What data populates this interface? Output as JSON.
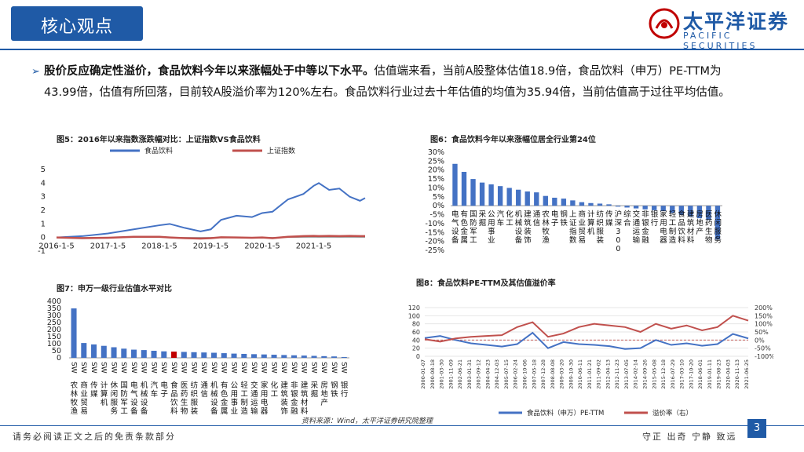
{
  "header": {
    "title": "核心观点",
    "logo_cn": "太平洋证券",
    "logo_en": "PACIFIC SECURITIES"
  },
  "bullet": {
    "bold": "股价反应确定性溢价，食品饮料今年以来涨幅处于中等以下水平。",
    "text": "估值端来看，当前A股整体估值18.9倍，食品饮料（申万）PE-TTM为43.99倍，估值有所回落，目前较A股溢价率为120%左右。食品饮料行业过去十年估值的均值为35.94倍，当前估值高于过往平均估值。"
  },
  "colors": {
    "blue": "#4472c4",
    "red": "#c0504d",
    "highlight": "#c00000"
  },
  "chart_data": [
    {
      "id": "fig5",
      "type": "line",
      "title": "图5：2016年以来指数涨跌幅对比：上证指数VS食品饮料",
      "legend": [
        "食品饮料",
        "上证指数"
      ],
      "xlabel": "",
      "ylabel": "",
      "ylim": [
        -1,
        5
      ],
      "yticks": [
        "5",
        "4",
        "3",
        "2",
        "1",
        "0",
        "-1"
      ],
      "xticks": [
        "2016-1-5",
        "2017-1-5",
        "2018-1-5",
        "2019-1-5",
        "2020-1-5",
        "2021-1-5"
      ],
      "x": [
        2016.0,
        2016.5,
        2017.0,
        2017.5,
        2018.0,
        2018.2,
        2018.5,
        2018.8,
        2019.0,
        2019.2,
        2019.5,
        2019.8,
        2020.0,
        2020.2,
        2020.5,
        2020.8,
        2021.0,
        2021.1,
        2021.3,
        2021.5,
        2021.7,
        2021.9,
        2022.0
      ],
      "series": [
        {
          "name": "食品饮料",
          "values": [
            0.0,
            0.1,
            0.3,
            0.6,
            0.9,
            1.0,
            0.7,
            0.45,
            0.6,
            1.3,
            1.6,
            1.5,
            1.8,
            1.9,
            2.8,
            3.2,
            3.8,
            4.0,
            3.5,
            3.6,
            3.0,
            2.7,
            2.9
          ]
        },
        {
          "name": "上证指数",
          "values": [
            0.0,
            -0.05,
            -0.02,
            0.05,
            0.05,
            0.0,
            -0.05,
            -0.08,
            -0.05,
            0.02,
            0.0,
            -0.02,
            0.0,
            -0.05,
            0.05,
            0.1,
            0.12,
            0.1,
            0.12,
            0.1,
            0.12,
            0.1,
            0.1
          ]
        }
      ]
    },
    {
      "id": "fig6",
      "type": "bar",
      "title": "图6：食品饮料今年以来涨幅位居全行业第24位",
      "ylim": [
        -25,
        30
      ],
      "yticks": [
        "30%",
        "25%",
        "20%",
        "15%",
        "10%",
        "5%",
        "0%",
        "-5%",
        "-10%",
        "-15%",
        "-20%",
        "-25%"
      ],
      "categories": [
        "电气设备",
        "有色金属",
        "国防军工",
        "采掘",
        "公用事业",
        "汽车",
        "化工",
        "机械设备",
        "建筑装饰",
        "通信",
        "农林牧渔",
        "电子",
        "钢铁",
        "上证指数",
        "商业贸易",
        "计算机",
        "纺织服装",
        "传媒",
        "沪深300",
        "综合",
        "交通运输",
        "非银金融",
        "银行",
        "家用电器",
        "轻工制造",
        "食品饮料",
        "建筑材料",
        "房地产",
        "医药生物",
        "休闲服务"
      ],
      "values": [
        23.5,
        19,
        15,
        13,
        12,
        11,
        10,
        9,
        8,
        7.5,
        5.5,
        4.5,
        4.0,
        3.0,
        2.0,
        1.5,
        1.2,
        0.8,
        -0.5,
        -1,
        -1.5,
        -2,
        -2.5,
        -3,
        -4,
        -5,
        -6,
        -7,
        -8,
        -19
      ],
      "value_format": "percent"
    },
    {
      "id": "fig7",
      "type": "bar",
      "title": "图7：申万一级行业估值水平对比",
      "ylim": [
        0,
        400
      ],
      "yticks": [
        "400",
        "350",
        "300",
        "250",
        "200",
        "150",
        "100",
        "50",
        "0"
      ],
      "categories": [
        "农林牧渔",
        "商业贸易",
        "传媒",
        "计算机",
        "休闲服务",
        "国防军工",
        "电气设备",
        "机械设备",
        "汽车",
        "电子",
        "食品饮料",
        "医药生物",
        "纺织服装",
        "通信",
        "机械设备",
        "有色金属",
        "公用事业",
        "轻工制造",
        "交通运输",
        "家用电器",
        "化工",
        "建筑装饰",
        "非银金融",
        "建筑材料",
        "采掘",
        "房地产",
        "钢铁",
        "银行"
      ],
      "tick_label": "SW",
      "highlight_index": 10,
      "values": [
        350,
        105,
        95,
        85,
        75,
        65,
        58,
        55,
        50,
        46,
        44,
        42,
        40,
        38,
        36,
        33,
        30,
        28,
        26,
        24,
        22,
        20,
        18,
        16,
        14,
        12,
        10,
        6
      ]
    },
    {
      "id": "fig8",
      "type": "line",
      "title": "图8：食品饮料PE-TTM及其估值溢价率",
      "legend": [
        "食品饮料（申万）PE-TTM",
        "溢价率（右）"
      ],
      "ylim": [
        0,
        120
      ],
      "y2lim": [
        -100,
        200
      ],
      "yticks": [
        "120",
        "100",
        "80",
        "60",
        "40",
        "20",
        "0"
      ],
      "y2ticks": [
        "200%",
        "150%",
        "100%",
        "50%",
        "0%",
        "-50%",
        "-100%"
      ],
      "xticks": [
        "2000-01-07",
        "2000-08-18",
        "2001-03-30",
        "2001-11-09",
        "2002-06-21",
        "2003-01-31",
        "2003-09-12",
        "2004-04-23",
        "2004-12-03",
        "2005-07-15",
        "2006-02-24",
        "2006-10-06",
        "2007-05-18",
        "2007-12-28",
        "2008-08-08",
        "2009-03-20",
        "2009-10-30",
        "2010-06-11",
        "2011-01-21",
        "2011-09-02",
        "2012-04-13",
        "2012-11-23",
        "2013-07-05",
        "2014-02-14",
        "2014-09-26",
        "2015-05-08",
        "2015-12-18",
        "2016-07-29",
        "2017-03-10",
        "2017-10-20",
        "2018-06-01",
        "2019-01-11",
        "2019-08-23",
        "2020-04-03",
        "2020-11-13",
        "2021-06-25"
      ],
      "x": [
        2000,
        2001,
        2002,
        2003,
        2004,
        2005,
        2006,
        2007,
        2008,
        2009,
        2010,
        2011,
        2012,
        2013,
        2014,
        2015,
        2016,
        2017,
        2018,
        2019,
        2020,
        2021
      ],
      "series": [
        {
          "name": "食品饮料（申万）PE-TTM",
          "axis": "left",
          "values": [
            45,
            50,
            40,
            32,
            28,
            24,
            30,
            58,
            20,
            35,
            30,
            28,
            25,
            18,
            20,
            40,
            28,
            32,
            26,
            30,
            55,
            44
          ]
        },
        {
          "name": "溢价率（右）",
          "axis": "right",
          "values": [
            5,
            -10,
            10,
            20,
            25,
            30,
            80,
            110,
            20,
            40,
            80,
            100,
            90,
            80,
            50,
            100,
            70,
            90,
            60,
            80,
            150,
            120
          ]
        }
      ]
    }
  ],
  "source": "资料来源：Wind，太平洋证券研究院整理",
  "footer": {
    "left": "请务必阅读正文之后的免责条款部分",
    "right": "守正  出奇  宁静  致远",
    "page": "3"
  }
}
